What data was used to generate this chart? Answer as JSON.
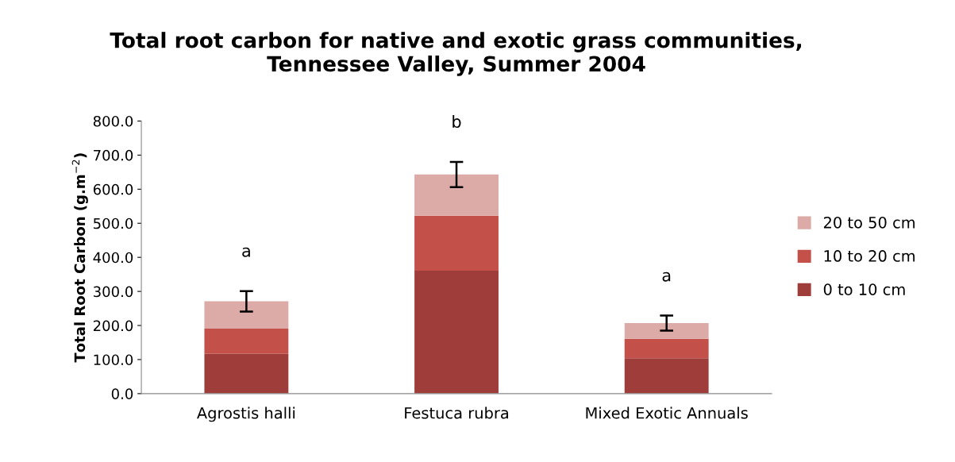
{
  "chart_data": {
    "type": "bar",
    "stacked": true,
    "title": "Total root carbon for native and exotic grass communities,\nTennessee Valley, Summer 2004",
    "ylabel": "Total Root Carbon (g.m$^{−2}$)",
    "categories": [
      "Agrostis halli",
      "Festuca rubra",
      "Mixed Exotic Annuals"
    ],
    "series": [
      {
        "name": "0 to 10 cm",
        "color": "#9e3d3a",
        "values": [
          117,
          361,
          104
        ]
      },
      {
        "name": "10 to 20 cm",
        "color": "#c4504a",
        "values": [
          74,
          161,
          57
        ]
      },
      {
        "name": "20 to 50 cm",
        "color": "#dcaba7",
        "values": [
          80,
          121,
          46
        ],
        "errors": [
          30,
          37,
          22
        ]
      }
    ],
    "ylim": [
      0,
      800
    ],
    "yticks": [
      {
        "value": 0,
        "label": "0.0"
      },
      {
        "value": 100,
        "label": "100.0"
      },
      {
        "value": 200,
        "label": "200.0"
      },
      {
        "value": 300,
        "label": "300.0"
      },
      {
        "value": 400,
        "label": "400.0"
      },
      {
        "value": 500,
        "label": "500.0"
      },
      {
        "value": 600,
        "label": "600.0"
      },
      {
        "value": 700,
        "label": "700.0"
      },
      {
        "value": 800,
        "label": "800.0"
      }
    ],
    "annotations": [
      "a",
      "b",
      "a"
    ],
    "grid": false,
    "legend": "right"
  }
}
